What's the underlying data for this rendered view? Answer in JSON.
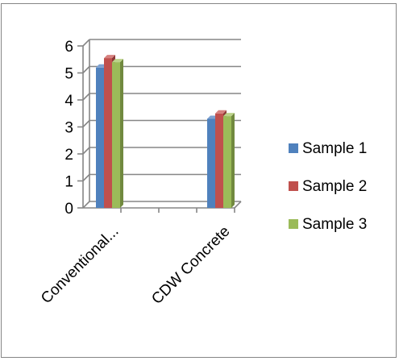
{
  "chart_data": {
    "type": "bar",
    "style": "3d-clustered-column",
    "categories": [
      "Conventional...",
      "CDW Concrete"
    ],
    "series": [
      {
        "name": "Sample 1",
        "values": [
          5.2,
          3.3
        ],
        "color": "#4F81BD",
        "dark": "#385D8A",
        "top": "#7EA1D1"
      },
      {
        "name": "Sample 2",
        "values": [
          5.55,
          3.5
        ],
        "color": "#C0504D",
        "dark": "#8C3836",
        "top": "#D6817F"
      },
      {
        "name": "Sample 3",
        "values": [
          5.4,
          3.4
        ],
        "color": "#9BBB59",
        "dark": "#71893F",
        "top": "#BBD28A"
      }
    ],
    "ylim": [
      0,
      6
    ],
    "yticks": [
      "0",
      "1",
      "2",
      "3",
      "4",
      "5",
      "6"
    ],
    "grid": true,
    "legend": "right",
    "gridline_color": "#868686",
    "axis_color": "#868686"
  }
}
